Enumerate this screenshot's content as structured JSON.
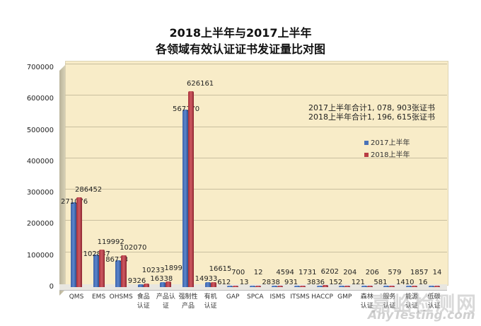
{
  "chart_data": {
    "type": "bar",
    "title": "2018上半年与2017上半年",
    "subtitle": "各领域有效认证证书发证量比对图",
    "xlabel": "",
    "ylabel": "",
    "ylim": [
      0,
      700000
    ],
    "yticks": [
      0,
      100000,
      200000,
      300000,
      400000,
      500000,
      600000,
      700000
    ],
    "grid": true,
    "legend_position": "right",
    "categories": [
      "QMS",
      "EMS",
      "OHSMS",
      "食品认证",
      "产品认证",
      "强制性产品",
      "有机认证",
      "GAP",
      "SPCA",
      "ISMS",
      "ITSMS",
      "HACCP",
      "GMP",
      "森林认证",
      "服务认证",
      "能源认证",
      "低碳认证"
    ],
    "series": [
      {
        "name": "2017上半年",
        "color": "#4a72b8",
        "values": [
          271076,
          102837,
          86713,
          9326,
          16338,
          567170,
          14933,
          612,
          13,
          2838,
          931,
          3836,
          152,
          121,
          581,
          1410,
          16
        ]
      },
      {
        "name": "2018上半年",
        "color": "#b83c44",
        "values": [
          286452,
          119992,
          102070,
          10233,
          18993,
          626161,
          16615,
          700,
          12,
          4594,
          1731,
          6202,
          204,
          206,
          579,
          1857,
          14
        ]
      }
    ],
    "annotations": [
      "2017上半年合计1, 078, 903张证书",
      "2018上半年合计1, 196, 615张证书"
    ]
  },
  "header": {
    "title": "2018上半年与2017上半年",
    "subtitle": "各领域有效认证证书发证量比对图"
  },
  "yaxis": {
    "ticks": [
      "700000",
      "600000",
      "500000",
      "400000",
      "300000",
      "200000",
      "100000",
      "0"
    ]
  },
  "xaxis": {
    "labels": [
      [
        "QMS",
        ""
      ],
      [
        "EMS",
        ""
      ],
      [
        "OHSMS",
        ""
      ],
      [
        "食品",
        "认证"
      ],
      [
        "产品认",
        "证"
      ],
      [
        "强制性",
        "产品"
      ],
      [
        "有机",
        "认证"
      ],
      [
        "GAP",
        ""
      ],
      [
        "SPCA",
        ""
      ],
      [
        "ISMS",
        ""
      ],
      [
        "ITSMS",
        ""
      ],
      [
        "HACCP",
        ""
      ],
      [
        "GMP",
        ""
      ],
      [
        "森林",
        "认证"
      ],
      [
        "服务",
        "认证"
      ],
      [
        "能源",
        "认证"
      ],
      [
        "低碳",
        "认证"
      ]
    ]
  },
  "note": {
    "line1": "2017上半年合计1, 078, 903张证书",
    "line2": "2018上半年合计1, 196, 615张证书"
  },
  "legend": {
    "s2017": "2017上半年",
    "s2018": "2018上半年"
  },
  "watermark": {
    "cn": "嘉峪检测网",
    "en": "AnyTesting.com"
  }
}
